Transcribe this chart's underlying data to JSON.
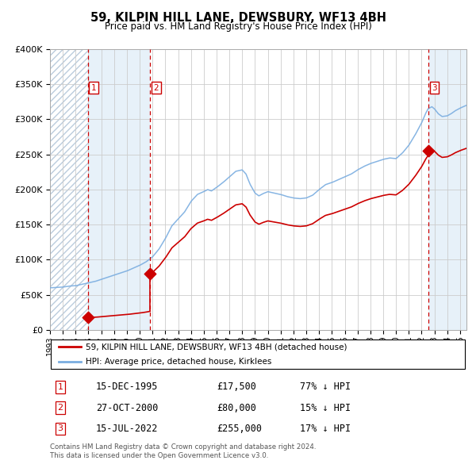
{
  "title": "59, KILPIN HILL LANE, DEWSBURY, WF13 4BH",
  "subtitle": "Price paid vs. HM Land Registry's House Price Index (HPI)",
  "transactions": [
    {
      "num": 1,
      "date_str": "15-DEC-1995",
      "date_x": 1995.958,
      "price": 17500,
      "pct": "77% ↓ HPI"
    },
    {
      "num": 2,
      "date_str": "27-OCT-2000",
      "date_x": 2000.819,
      "price": 80000,
      "pct": "15% ↓ HPI"
    },
    {
      "num": 3,
      "date_str": "15-JUL-2022",
      "date_x": 2022.538,
      "price": 255000,
      "pct": "17% ↓ HPI"
    }
  ],
  "legend_line1": "59, KILPIN HILL LANE, DEWSBURY, WF13 4BH (detached house)",
  "legend_line2": "HPI: Average price, detached house, Kirklees",
  "footer": "Contains HM Land Registry data © Crown copyright and database right 2024.\nThis data is licensed under the Open Government Licence v3.0.",
  "price_color": "#cc0000",
  "hpi_color": "#7aade0",
  "ylim": [
    0,
    400000
  ],
  "xlim_start": 1993.0,
  "xlim_end": 2025.5
}
